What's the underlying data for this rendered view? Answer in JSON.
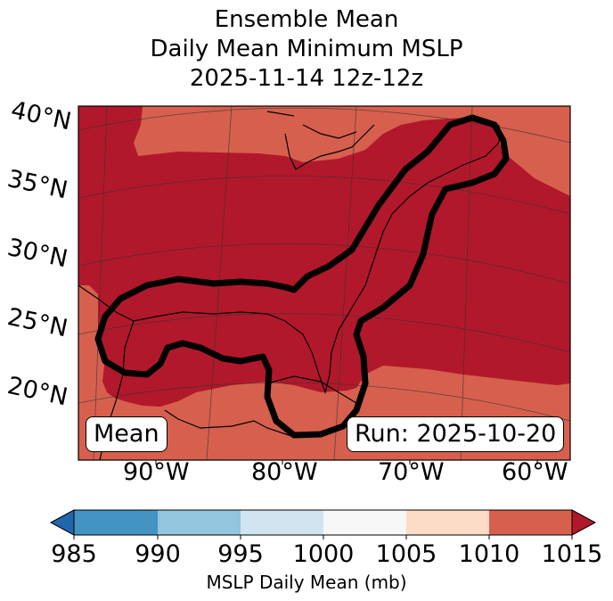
{
  "title": {
    "line1": "Ensemble Mean",
    "line2": "Daily Mean Minimum MSLP",
    "line3": "2025-11-14 12z-12z"
  },
  "map": {
    "lat_labels": [
      "40°N",
      "35°N",
      "30°N",
      "25°N",
      "20°N"
    ],
    "lon_labels": [
      "90°W",
      "80°W",
      "70°W",
      "60°W"
    ],
    "mean_label": "Mean",
    "run_label": "Run: 2025-10-20",
    "fill_colors": {
      "low_band": "#b2182b",
      "high_band": "#d6604d",
      "contour": "#000000"
    }
  },
  "colorbar": {
    "ticks": [
      "985",
      "990",
      "995",
      "1000",
      "1005",
      "1010",
      "1015"
    ],
    "label": "MSLP Daily Mean (mb)",
    "colors": [
      "#2166ac",
      "#4393c3",
      "#92c5de",
      "#d1e5f0",
      "#f7f7f7",
      "#fddbc7",
      "#d6604d",
      "#b2182b"
    ]
  }
}
